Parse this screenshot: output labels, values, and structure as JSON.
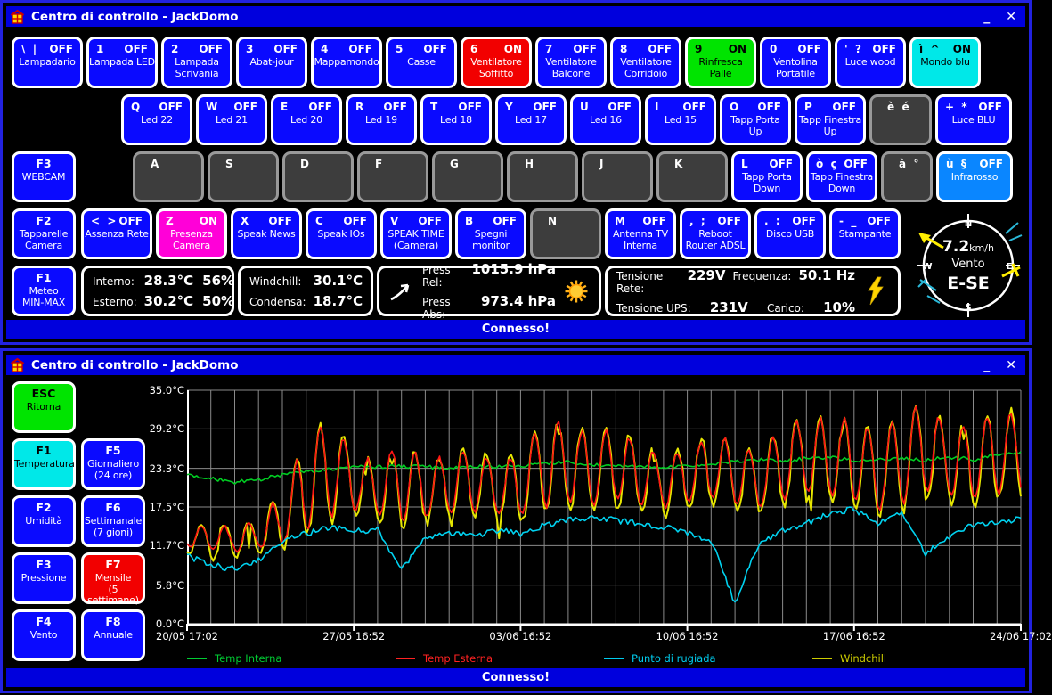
{
  "app": {
    "title": "Centro di controllo - JackDomo",
    "minimize": "_",
    "close": "✕",
    "status": "Connesso!"
  },
  "palette": {
    "titlebar": "#0000dd",
    "key_blue": "#0a0aff",
    "key_red": "#f20000",
    "key_green": "#00e400",
    "key_cyan": "#00e8e8",
    "key_magenta": "#ff00d8",
    "key_lightblue": "#0a86ff",
    "key_gray": "#3d3d3d"
  },
  "top_window": {
    "row1": [
      {
        "keys": "\\  |",
        "state": "OFF",
        "label": "Lampadario",
        "style": "blue"
      },
      {
        "keys": "1",
        "state": "OFF",
        "label": "Lampada LED",
        "style": "blue"
      },
      {
        "keys": "2",
        "state": "OFF",
        "label": "Lampada\nScrivania",
        "style": "blue"
      },
      {
        "keys": "3",
        "state": "OFF",
        "label": "Abat-jour",
        "style": "blue"
      },
      {
        "keys": "4",
        "state": "OFF",
        "label": "Mappamondo",
        "style": "blue"
      },
      {
        "keys": "5",
        "state": "OFF",
        "label": "Casse",
        "style": "blue"
      },
      {
        "keys": "6",
        "state": "ON",
        "label": "Ventilatore\nSoffitto",
        "style": "red"
      },
      {
        "keys": "7",
        "state": "OFF",
        "label": "Ventilatore\nBalcone",
        "style": "blue"
      },
      {
        "keys": "8",
        "state": "OFF",
        "label": "Ventilatore\nCorridoio",
        "style": "blue"
      },
      {
        "keys": "9",
        "state": "ON",
        "label": "Rinfresca\nPalle",
        "style": "green"
      },
      {
        "keys": "0",
        "state": "OFF",
        "label": "Ventolina\nPortatile",
        "style": "blue"
      },
      {
        "keys": "'  ?",
        "state": "OFF",
        "label": "Luce wood",
        "style": "blue"
      },
      {
        "keys": "ì  ^",
        "state": "ON",
        "label": "Mondo blu",
        "style": "cyan"
      }
    ],
    "row2": [
      {
        "keys": "Q",
        "state": "OFF",
        "label": "Led 22",
        "style": "blue"
      },
      {
        "keys": "W",
        "state": "OFF",
        "label": "Led 21",
        "style": "blue"
      },
      {
        "keys": "E",
        "state": "OFF",
        "label": "Led 20",
        "style": "blue"
      },
      {
        "keys": "R",
        "state": "OFF",
        "label": "Led 19",
        "style": "blue"
      },
      {
        "keys": "T",
        "state": "OFF",
        "label": "Led 18",
        "style": "blue"
      },
      {
        "keys": "Y",
        "state": "OFF",
        "label": "Led 17",
        "style": "blue"
      },
      {
        "keys": "U",
        "state": "OFF",
        "label": "Led 16",
        "style": "blue"
      },
      {
        "keys": "I",
        "state": "OFF",
        "label": "Led 15",
        "style": "blue"
      },
      {
        "keys": "O",
        "state": "OFF",
        "label": "Tapp Porta\nUp",
        "style": "blue"
      },
      {
        "keys": "P",
        "state": "OFF",
        "label": "Tapp Finestra\nUp",
        "style": "blue"
      },
      {
        "keys": "è  é",
        "style": "gray"
      },
      {
        "keys": "+  *",
        "state": "OFF",
        "label": "Luce BLU",
        "style": "blue"
      }
    ],
    "row3": [
      {
        "keys": "F3",
        "label": "WEBCAM",
        "style": "blue",
        "fkey": true
      },
      {
        "keys": "A",
        "style": "gray"
      },
      {
        "keys": "S",
        "style": "gray"
      },
      {
        "keys": "D",
        "style": "gray"
      },
      {
        "keys": "F",
        "style": "gray"
      },
      {
        "keys": "G",
        "style": "gray"
      },
      {
        "keys": "H",
        "style": "gray"
      },
      {
        "keys": "J",
        "style": "gray"
      },
      {
        "keys": "K",
        "style": "gray"
      },
      {
        "keys": "L",
        "state": "OFF",
        "label": "Tapp Porta\nDown",
        "style": "blue"
      },
      {
        "keys": "ò  ç",
        "state": "OFF",
        "label": "Tapp Finestra\nDown",
        "style": "blue"
      },
      {
        "keys": "à  °",
        "style": "gray"
      },
      {
        "keys": "ù  §",
        "state": "OFF",
        "label": "Infrarosso",
        "style": "lightblue"
      }
    ],
    "row4": [
      {
        "keys": "F2",
        "label": "Tapparelle\nCamera",
        "style": "blue",
        "fkey": true
      },
      {
        "keys": "<  >",
        "state": "OFF",
        "label": "Assenza Rete",
        "style": "blue"
      },
      {
        "keys": "Z",
        "state": "ON",
        "label": "Presenza\nCamera",
        "style": "magenta"
      },
      {
        "keys": "X",
        "state": "OFF",
        "label": "Speak News",
        "style": "blue"
      },
      {
        "keys": "C",
        "state": "OFF",
        "label": "Speak IOs",
        "style": "blue"
      },
      {
        "keys": "V",
        "state": "OFF",
        "label": "SPEAK TIME\n(Camera)",
        "style": "blue"
      },
      {
        "keys": "B",
        "state": "OFF",
        "label": "Spegni\nmonitor",
        "style": "blue"
      },
      {
        "keys": "N",
        "style": "gray"
      },
      {
        "keys": "M",
        "state": "OFF",
        "label": "Antenna TV\nInterna",
        "style": "blue"
      },
      {
        "keys": ",  ;",
        "state": "OFF",
        "label": "Reboot\nRouter ADSL",
        "style": "blue"
      },
      {
        "keys": ".  :",
        "state": "OFF",
        "label": "Disco USB",
        "style": "blue"
      },
      {
        "keys": "-  _",
        "state": "OFF",
        "label": "Stampante",
        "style": "blue"
      }
    ],
    "f1_key": {
      "keys": "F1",
      "label": "Meteo\nMIN-MAX",
      "style": "blue",
      "fkey": true
    },
    "panels": [
      {
        "name": "temperature-panel",
        "lines": [
          [
            "Interno:",
            "28.3°C",
            "56%"
          ],
          [
            "Esterno:",
            "30.2°C",
            "50%"
          ]
        ]
      },
      {
        "name": "windchill-panel",
        "lines": [
          [
            "Windchill:",
            "30.1°C"
          ],
          [
            "Condensa:",
            "18.7°C"
          ]
        ]
      },
      {
        "name": "pressure-panel",
        "icon_left": "trend-arrow-icon",
        "icon_right": "sun-icon",
        "lines": [
          [
            "Press Rel:",
            "1015.9 hPa"
          ],
          [
            "Press Abs:",
            "973.4 hPa"
          ]
        ]
      },
      {
        "name": "power-panel",
        "icon_right": "lightning-icon",
        "lines4": [
          [
            "Tensione Rete:",
            "229V",
            "Frequenza:",
            "50.1 Hz"
          ],
          [
            "Tensione UPS:",
            "231V",
            "Carico:",
            "10%"
          ]
        ]
      }
    ],
    "compass": {
      "speed": "7.2",
      "unit": "km/h",
      "label": "Vento",
      "direction": "E-SE",
      "cardinals": [
        "N",
        "E",
        "S",
        "W"
      ]
    }
  },
  "bottom_window": {
    "buttons": [
      {
        "keys": "ESC",
        "label": "Ritorna",
        "style": "green",
        "fkey": true
      },
      {
        "keys": "F1",
        "label": "Temperatura",
        "style": "cyan",
        "fkey": true
      },
      {
        "keys": "F5",
        "label": "Giornaliero\n(24 ore)",
        "style": "blue",
        "fkey": true
      },
      {
        "keys": "F2",
        "label": "Umidità",
        "style": "blue",
        "fkey": true
      },
      {
        "keys": "F6",
        "label": "Settimanale\n(7 gioni)",
        "style": "blue",
        "fkey": true
      },
      {
        "keys": "F3",
        "label": "Pressione",
        "style": "blue",
        "fkey": true
      },
      {
        "keys": "F7",
        "label": "Mensile\n(5 settimane)",
        "style": "red",
        "fkey": true
      },
      {
        "keys": "F4",
        "label": "Vento",
        "style": "blue",
        "fkey": true
      },
      {
        "keys": "F8",
        "label": "Annuale",
        "style": "blue",
        "fkey": true
      }
    ]
  },
  "chart_data": {
    "type": "line",
    "title": "",
    "xlabel": "",
    "ylabel": "°C",
    "ylim": [
      0,
      35
    ],
    "days": 35,
    "grid": true,
    "background": "#000000",
    "yticks": [
      {
        "v": 35.0,
        "label": "35.0°C"
      },
      {
        "v": 29.2,
        "label": "29.2°C"
      },
      {
        "v": 23.3,
        "label": "23.3°C"
      },
      {
        "v": 17.5,
        "label": "17.5°C"
      },
      {
        "v": 11.7,
        "label": "11.7°C"
      },
      {
        "v": 5.8,
        "label": "5.8°C"
      },
      {
        "v": 0.0,
        "label": "0.0°C"
      }
    ],
    "xticks": [
      {
        "d": 0,
        "label": "20/05 17:02"
      },
      {
        "d": 7,
        "label": "27/05 16:52"
      },
      {
        "d": 14,
        "label": "03/06 16:52"
      },
      {
        "d": 21,
        "label": "10/06 16:52"
      },
      {
        "d": 28,
        "label": "17/06 16:52"
      },
      {
        "d": 35,
        "label": "24/06 17:02"
      }
    ],
    "legend": [
      {
        "name": "Temp Interna",
        "color": "#00cc33"
      },
      {
        "name": "Temp Esterna",
        "color": "#ff2222"
      },
      {
        "name": "Punto di rugiada",
        "color": "#00ccee"
      },
      {
        "name": "Windchill",
        "color": "#cccc00"
      }
    ],
    "series": {
      "temp_interna_daily": [
        22.2,
        21.8,
        21.2,
        21.6,
        22.3,
        22.8,
        23.2,
        23.5,
        23.5,
        23.6,
        23.5,
        23.4,
        23.5,
        23.6,
        23.7,
        24.0,
        24.2,
        23.9,
        23.6,
        23.5,
        23.4,
        23.6,
        24.0,
        24.4,
        24.6,
        24.3,
        24.8,
        24.9,
        24.5,
        24.6,
        24.8,
        24.5,
        25.0,
        24.6,
        25.3,
        25.8
      ],
      "temp_esterna_daily_min": [
        11.5,
        11.0,
        10.8,
        11.2,
        12.0,
        14.0,
        16.0,
        17.0,
        16.5,
        15.5,
        16.0,
        16.5,
        17.0,
        16.5,
        16.0,
        17.5,
        18.5,
        18.0,
        18.5,
        18.0,
        17.5,
        18.0,
        18.5,
        18.0,
        17.5,
        18.5,
        19.5,
        19.0,
        18.5,
        17.0,
        18.0,
        19.5,
        19.0,
        18.5,
        19.5
      ],
      "temp_esterna_daily_max": [
        13.5,
        15.0,
        14.0,
        15.5,
        19.5,
        27.5,
        31.5,
        25.5,
        24.0,
        27.0,
        24.5,
        25.0,
        26.5,
        24.0,
        25.5,
        31.0,
        29.5,
        28.5,
        29.5,
        26.5,
        25.5,
        26.0,
        28.5,
        27.0,
        25.5,
        29.5,
        31.0,
        30.5,
        31.0,
        28.0,
        31.5,
        33.0,
        29.5,
        30.0,
        31.5
      ],
      "punto_di_rugiada_daily": [
        10.2,
        8.8,
        8.2,
        9.5,
        12.5,
        13.5,
        14.5,
        13.8,
        14.2,
        8.0,
        13.0,
        13.5,
        13.2,
        14.0,
        13.5,
        14.8,
        15.5,
        16.0,
        15.5,
        15.0,
        14.5,
        13.5,
        12.5,
        3.0,
        12.0,
        14.0,
        15.0,
        16.5,
        17.2,
        15.0,
        16.8,
        10.5,
        13.0,
        14.8,
        15.2,
        15.8
      ]
    }
  }
}
